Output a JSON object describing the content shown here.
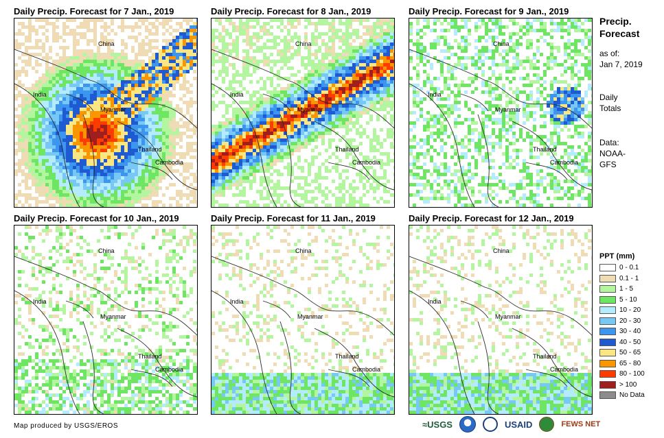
{
  "panels": [
    {
      "title": "Daily Precip. Forecast for 7 Jan., 2019",
      "intensity": "heavy-west"
    },
    {
      "title": "Daily Precip. Forecast for 8 Jan., 2019",
      "intensity": "heavy-band"
    },
    {
      "title": "Daily Precip. Forecast for 9 Jan., 2019",
      "intensity": "moderate"
    },
    {
      "title": "Daily Precip. Forecast for 10 Jan., 2019",
      "intensity": "light"
    },
    {
      "title": "Daily Precip. Forecast for 11 Jan., 2019",
      "intensity": "light-south"
    },
    {
      "title": "Daily Precip. Forecast for 12 Jan., 2019",
      "intensity": "light-south"
    }
  ],
  "map_labels": {
    "china": "China",
    "india": "India",
    "myanmar": "Myanmar",
    "thailand": "Thailand",
    "cambodia": "Cambodia"
  },
  "side_info": {
    "title_line1": "Precip.",
    "title_line2": "Forecast",
    "asof_label": "as of:",
    "asof_date": "Jan 7, 2019",
    "totals_line1": "Daily",
    "totals_line2": "Totals",
    "data_line1": "Data:",
    "data_line2": "NOAA-",
    "data_line3": "GFS"
  },
  "legend": {
    "title": "PPT (mm)",
    "items": [
      {
        "label": "0 - 0.1",
        "color": "#ffffff"
      },
      {
        "label": "0.1 - 1",
        "color": "#f0dcb4"
      },
      {
        "label": "1 - 5",
        "color": "#b4f5a0"
      },
      {
        "label": "5 - 10",
        "color": "#6ee664"
      },
      {
        "label": "10 - 20",
        "color": "#b4ebff"
      },
      {
        "label": "20 - 30",
        "color": "#78c8f5"
      },
      {
        "label": "30 - 40",
        "color": "#3c96f0"
      },
      {
        "label": "40 - 50",
        "color": "#1e5ad2"
      },
      {
        "label": "50 - 65",
        "color": "#fae682"
      },
      {
        "label": "65 - 80",
        "color": "#fa9600"
      },
      {
        "label": "80 - 100",
        "color": "#ff3c00"
      },
      {
        "label": "> 100",
        "color": "#a01e1e"
      },
      {
        "label": "No Data",
        "color": "#8c8c8c"
      }
    ]
  },
  "footer": {
    "credit": "Map produced by USGS/EROS",
    "logo_usgs": "≈USGS",
    "logo_usaid": "USAID",
    "logo_fews": "FEWS NET"
  }
}
